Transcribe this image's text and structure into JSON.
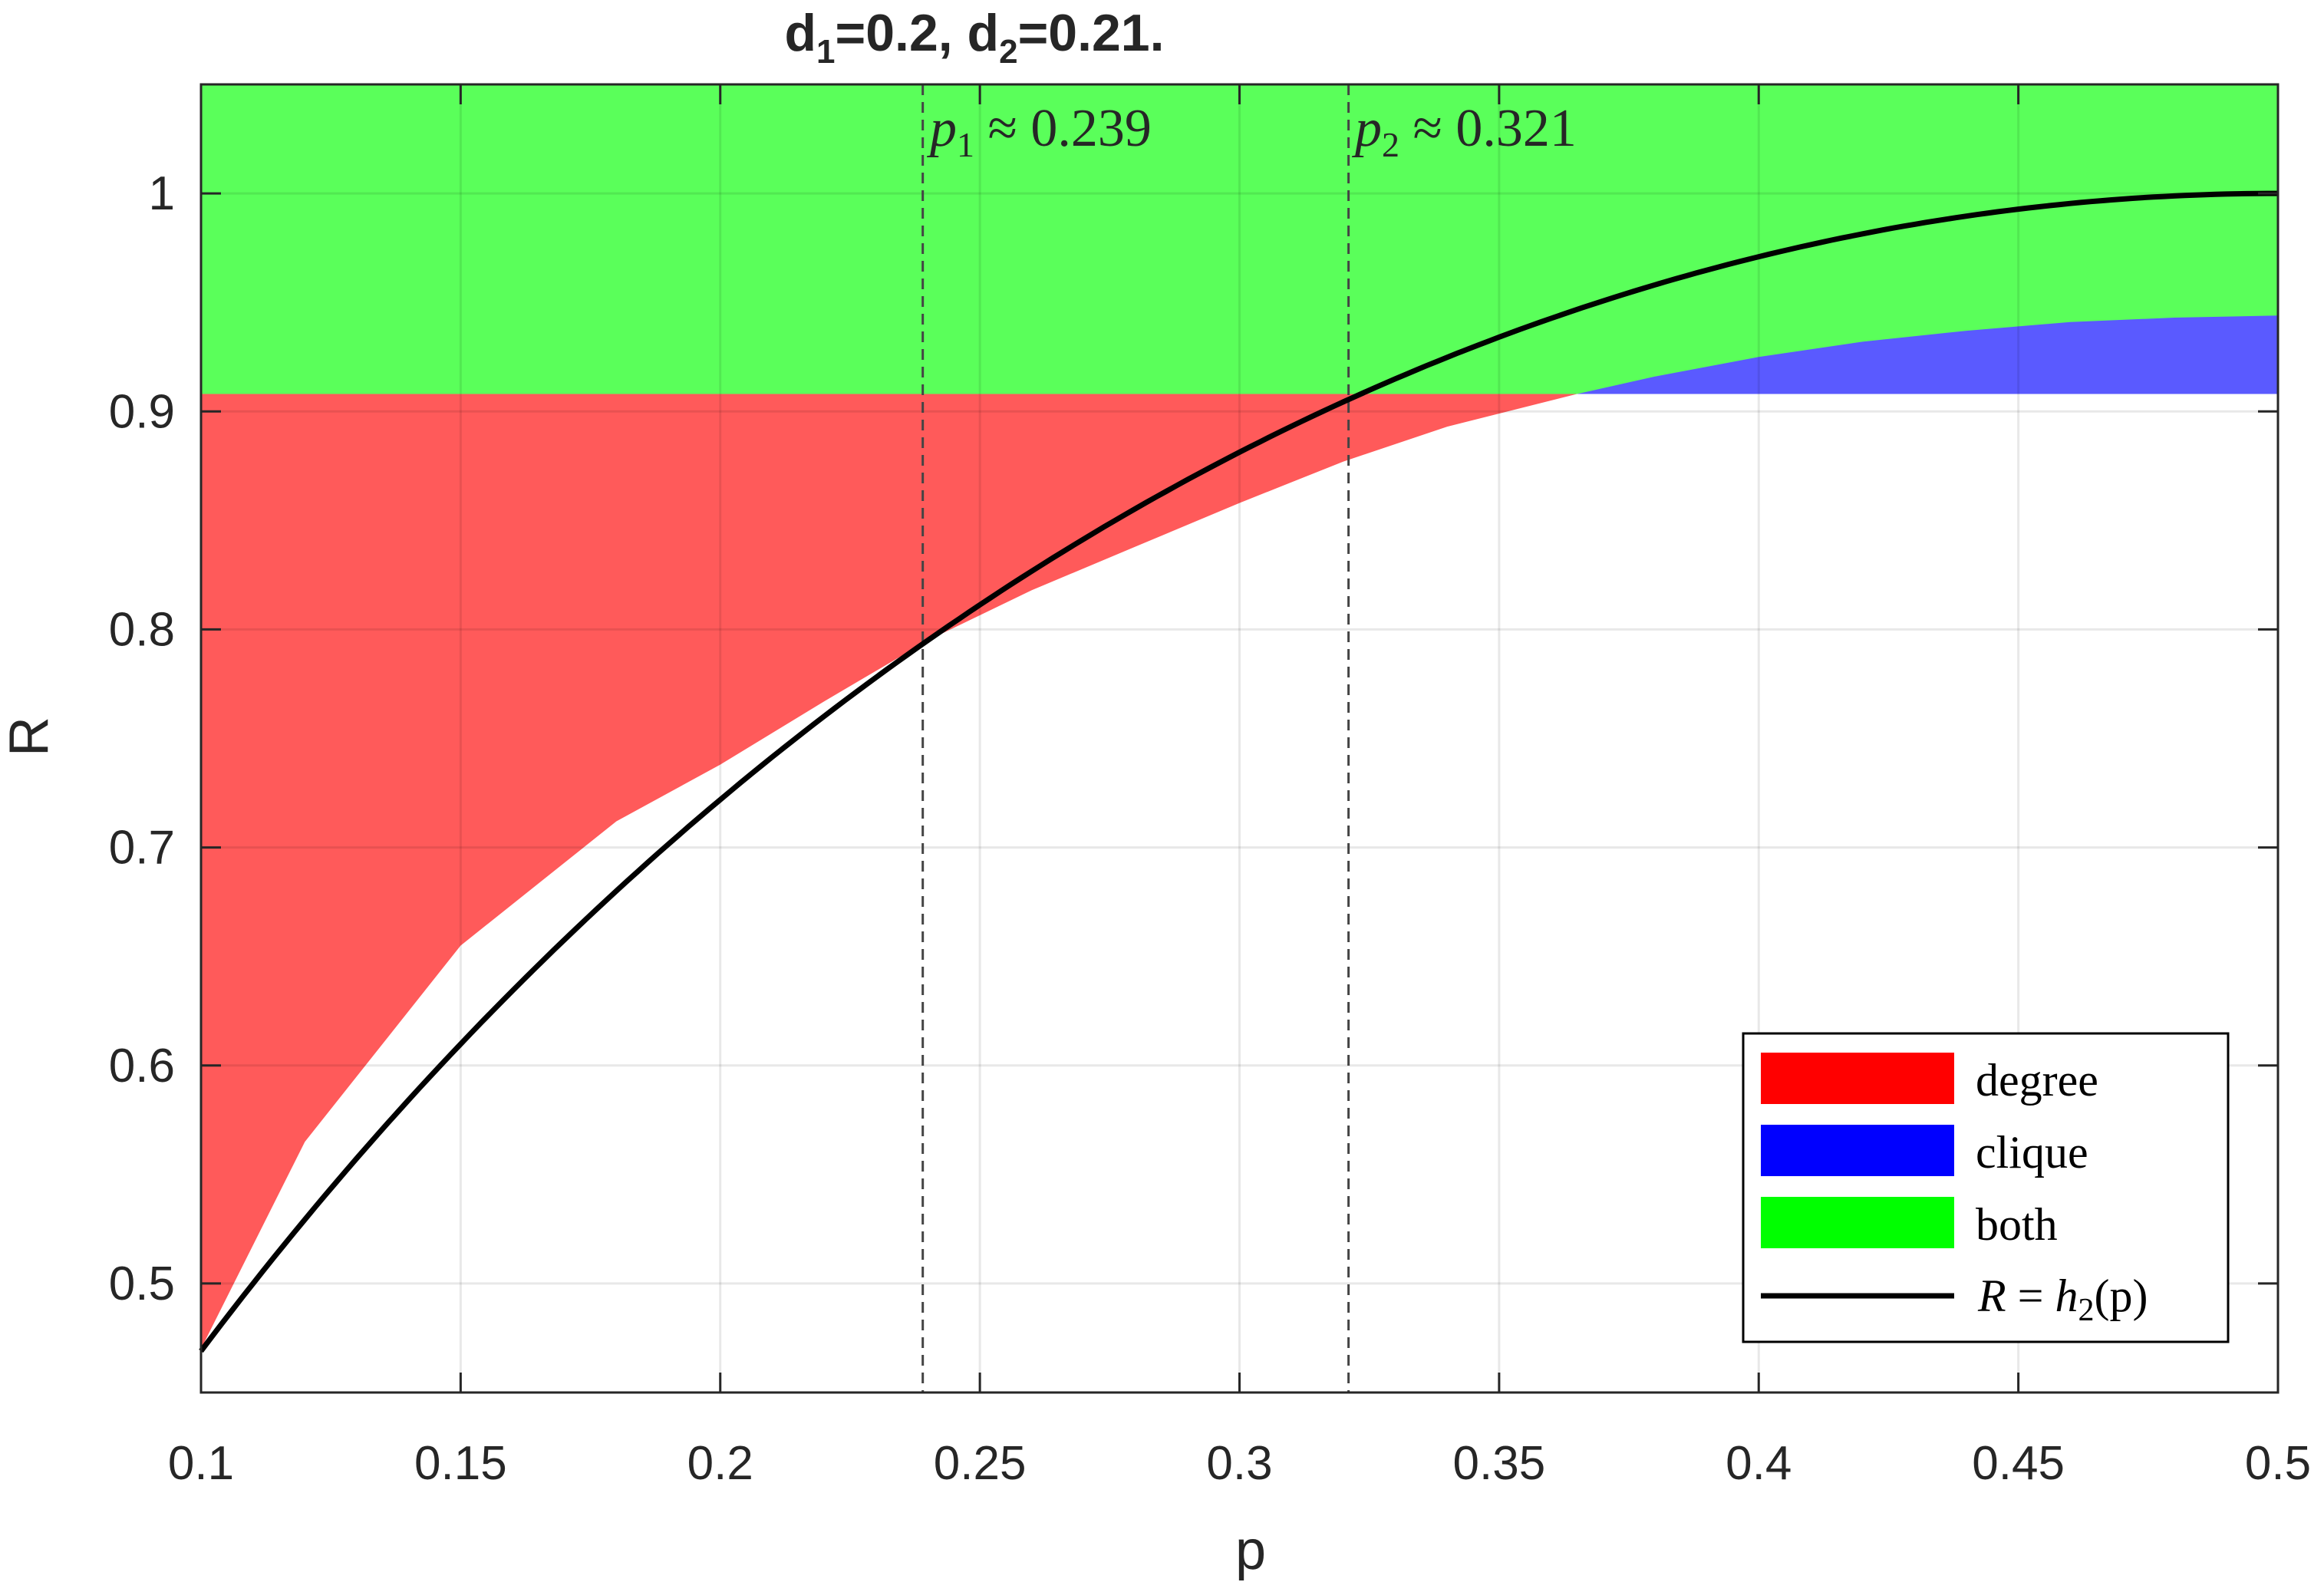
{
  "chart_data": {
    "type": "area",
    "title": {
      "main_a": "d",
      "sub_a": "1",
      "mid": "=0.2,  d",
      "sub_b": "2",
      "tail": "=0.21."
    },
    "xlabel": "p",
    "ylabel": "R",
    "xlim": [
      0.1,
      0.5
    ],
    "ylim": [
      0.45,
      1.05
    ],
    "xticks": [
      "0.1",
      "0.15",
      "0.2",
      "0.25",
      "0.3",
      "0.35",
      "0.4",
      "0.45",
      "0.5"
    ],
    "yticks": [
      "0.5",
      "0.6",
      "0.7",
      "0.8",
      "0.9",
      "1"
    ],
    "grid": true,
    "colors": {
      "degree": "#ff5a5a",
      "clique": "#5a5aff",
      "both": "#5aff5a",
      "curve": "#000000"
    },
    "regions": {
      "both": {
        "y_from": 0.908,
        "y_to": 1.05,
        "x_from": 0.1,
        "x_to": 0.5
      },
      "degree": {
        "boundary_x": [
          0.1,
          0.12,
          0.15,
          0.18,
          0.2,
          0.22,
          0.24,
          0.26,
          0.28,
          0.3,
          0.32,
          0.34,
          0.365
        ],
        "boundary_y": [
          0.47,
          0.565,
          0.655,
          0.712,
          0.738,
          0.767,
          0.795,
          0.818,
          0.838,
          0.858,
          0.877,
          0.893,
          0.908
        ],
        "top_y": 0.908
      },
      "clique": {
        "boundary_x": [
          0.365,
          0.38,
          0.4,
          0.42,
          0.44,
          0.46,
          0.48,
          0.5
        ],
        "boundary_y": [
          0.908,
          0.916,
          0.925,
          0.932,
          0.937,
          0.941,
          0.943,
          0.944
        ],
        "bottom_y": 0.908
      }
    },
    "curve": {
      "name": "R = h2(p)",
      "function": "binary_entropy",
      "x_from": 0.1,
      "x_to": 0.5
    },
    "vlines": [
      {
        "x": 0.239,
        "label_var": "p",
        "label_sub": "1",
        "label_rest": " ≈ 0.239"
      },
      {
        "x": 0.321,
        "label_var": "p",
        "label_sub": "2",
        "label_rest": " ≈ 0.321"
      }
    ],
    "legend": {
      "placement": "bottom-right",
      "entries": [
        {
          "label": "degree",
          "kind": "patch",
          "color": "#ff0000"
        },
        {
          "label": "clique",
          "kind": "patch",
          "color": "#0000ff"
        },
        {
          "label": "both",
          "kind": "patch",
          "color": "#00ff00"
        }
      ],
      "curve_entry": {
        "lhs": "R",
        "eq": " = ",
        "fn": "h",
        "sub": "2",
        "arg": "(p)"
      }
    }
  }
}
